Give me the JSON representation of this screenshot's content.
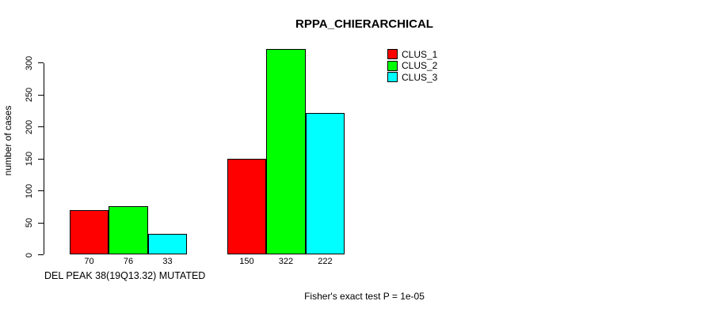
{
  "chart_data": {
    "type": "bar",
    "title": "RPPA_CHIERARCHICAL",
    "ylabel": "number of cases",
    "xlabel": "DEL PEAK 38(19Q13.32) MUTATED",
    "footnote": "Fisher's exact test P = 1e-05",
    "legend_position": "top-right",
    "grid": false,
    "background_color": "#ffffff",
    "ylim": [
      0,
      300
    ],
    "yticks": [
      0,
      50,
      100,
      150,
      200,
      250,
      300
    ],
    "bar_value_labels_shown": true,
    "series": [
      {
        "name": "CLUS_1",
        "color": "#ff0000",
        "values": [
          70,
          150
        ]
      },
      {
        "name": "CLUS_2",
        "color": "#00ff00",
        "values": [
          76,
          322
        ]
      },
      {
        "name": "CLUS_3",
        "color": "#00ffff",
        "values": [
          33,
          222
        ]
      }
    ]
  }
}
